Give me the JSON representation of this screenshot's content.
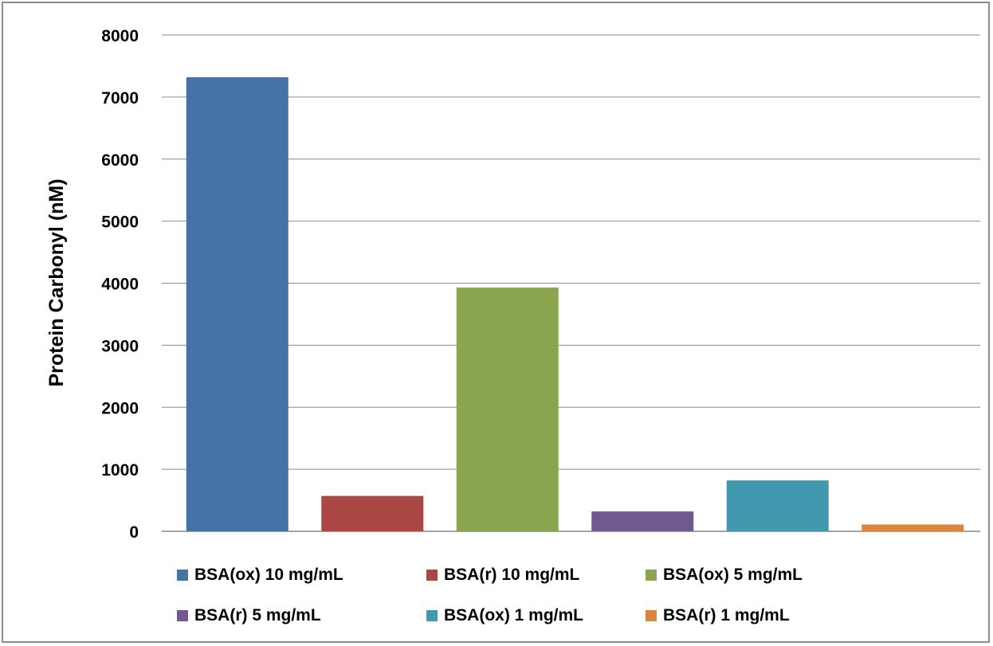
{
  "chart_data": {
    "type": "bar",
    "title": "",
    "xlabel": "",
    "ylabel": "Protein Carbonyl (nM)",
    "ylim": [
      0,
      8000
    ],
    "yticks": [
      "0",
      "1000",
      "2000",
      "3000",
      "4000",
      "5000",
      "6000",
      "7000",
      "8000"
    ],
    "grid": true,
    "legend_position": "bottom",
    "series": [
      {
        "name": "BSA(ox) 10 mg/mL",
        "value": 7320,
        "color": "#4572A7"
      },
      {
        "name": "BSA(r) 10 mg/mL",
        "value": 570,
        "color": "#AA4643"
      },
      {
        "name": "BSA(ox) 5 mg/mL",
        "value": 3930,
        "color": "#89A54E"
      },
      {
        "name": "BSA(r) 5 mg/mL",
        "value": 320,
        "color": "#71588F"
      },
      {
        "name": "BSA(ox) 1 mg/mL",
        "value": 820,
        "color": "#4198AF"
      },
      {
        "name": "BSA(r) 1 mg/mL",
        "value": 110,
        "color": "#DB843D"
      }
    ]
  },
  "legend": {
    "rows": [
      [
        0,
        1,
        2
      ],
      [
        3,
        4,
        5
      ]
    ]
  }
}
